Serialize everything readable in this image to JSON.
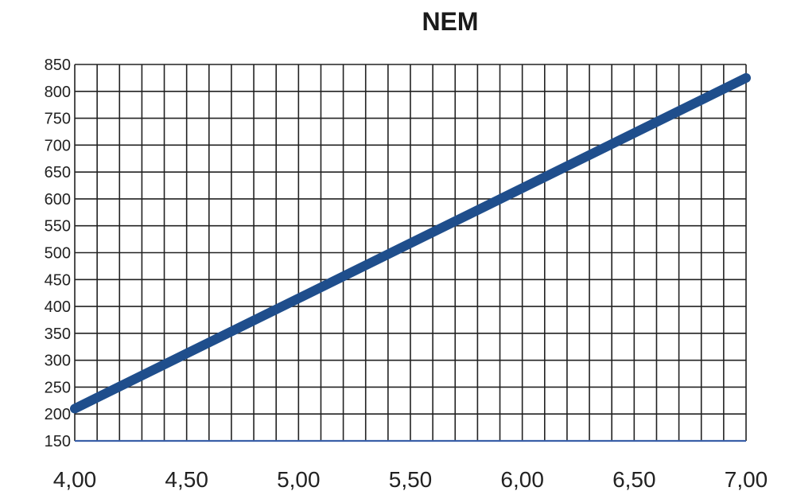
{
  "chart_data": {
    "type": "line",
    "title": "NEM",
    "xlabel": "",
    "ylabel": "",
    "xlim": [
      4.0,
      7.0
    ],
    "ylim": [
      150,
      850
    ],
    "x_ticks": [
      4.0,
      4.5,
      5.0,
      5.5,
      6.0,
      6.5,
      7.0
    ],
    "x_tick_labels": [
      "4,00",
      "4,50",
      "5,00",
      "5,50",
      "6,00",
      "6,50",
      "7,00"
    ],
    "y_ticks": [
      150,
      200,
      250,
      300,
      350,
      400,
      450,
      500,
      550,
      600,
      650,
      700,
      750,
      800,
      850
    ],
    "y_tick_labels": [
      "150",
      "200",
      "250",
      "300",
      "350",
      "400",
      "450",
      "500",
      "550",
      "600",
      "650",
      "700",
      "750",
      "800",
      "850"
    ],
    "grid": true,
    "x_minor_step": 0.1,
    "series": [
      {
        "color": "#1f4e8c",
        "x": [
          4.0,
          7.0
        ],
        "y": [
          210,
          825
        ]
      }
    ]
  }
}
